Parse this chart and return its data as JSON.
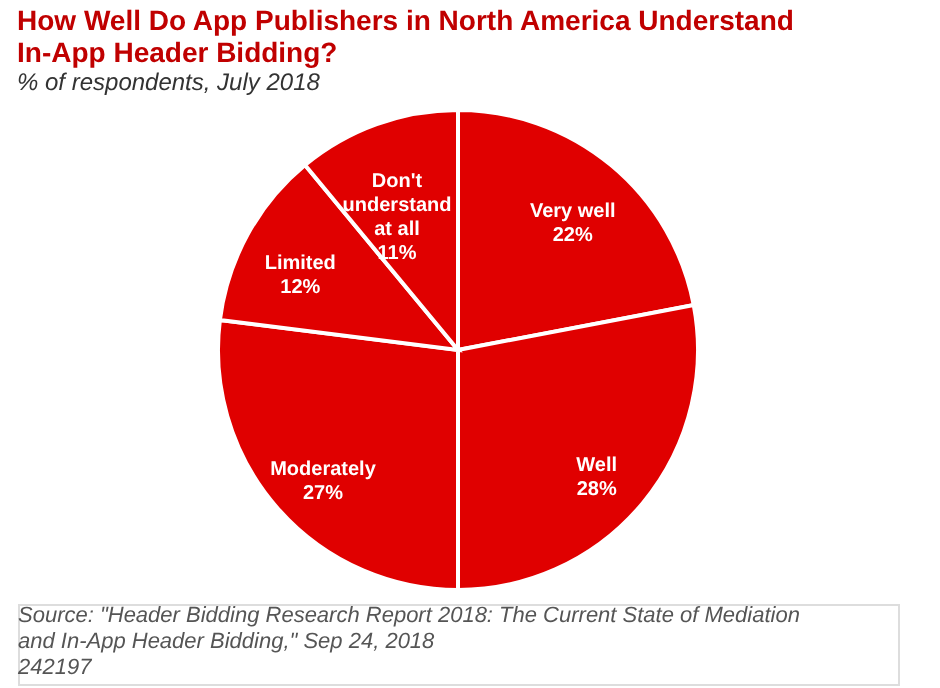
{
  "chart_data": {
    "type": "pie",
    "title": "How Well Do App Publishers in North America Understand In-App Header Bidding?",
    "subtitle": "% of respondents, July 2018",
    "categories": [
      "Very well",
      "Well",
      "Moderately",
      "Limited",
      "Don't understand at all"
    ],
    "values": [
      22,
      28,
      27,
      12,
      11
    ],
    "value_labels": [
      "22%",
      "28%",
      "27%",
      "12%",
      "11%"
    ],
    "colors": [
      "#e00000",
      "#e00000",
      "#e00000",
      "#e00000",
      "#e00000"
    ],
    "annotations": [
      "Source: \"Header Bidding Research Report 2018: The Current State of Mediation and In-App Header Bidding,\" Sep 24, 2018",
      "242197"
    ]
  }
}
